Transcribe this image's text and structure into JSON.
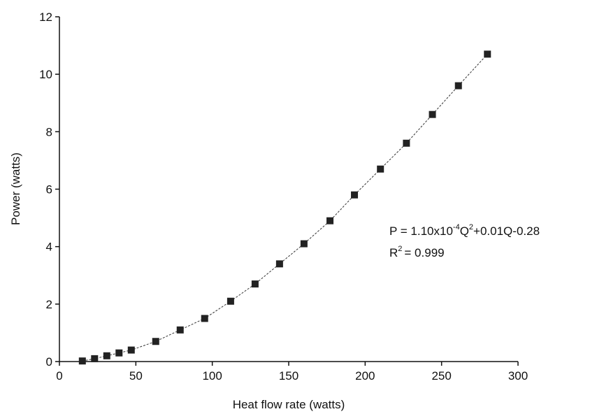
{
  "chart_data": {
    "type": "scatter",
    "x_label": "Heat flow rate (watts)",
    "y_label": "Power (watts)",
    "x": [
      15,
      23,
      31,
      39,
      47,
      63,
      79,
      95,
      112,
      128,
      144,
      160,
      177,
      193,
      210,
      227,
      244,
      261,
      280
    ],
    "values": [
      0.02,
      0.1,
      0.2,
      0.3,
      0.4,
      0.7,
      1.1,
      1.5,
      2.1,
      2.7,
      3.4,
      4.1,
      4.9,
      5.8,
      6.7,
      7.6,
      8.6,
      9.6,
      10.7
    ],
    "color": "#222222",
    "xlim": [
      0,
      300
    ],
    "xticks": [
      0,
      50,
      100,
      150,
      200,
      250,
      300
    ],
    "ylim": [
      0,
      12
    ],
    "yticks": [
      0,
      2,
      4,
      6,
      8,
      10,
      12
    ],
    "annotation": {
      "equation": [
        "P = 1.10x10",
        "-4",
        "Q",
        "2",
        "+0.01Q-0.28"
      ],
      "r_squared": [
        "R",
        "2",
        "= 0.999"
      ]
    }
  }
}
